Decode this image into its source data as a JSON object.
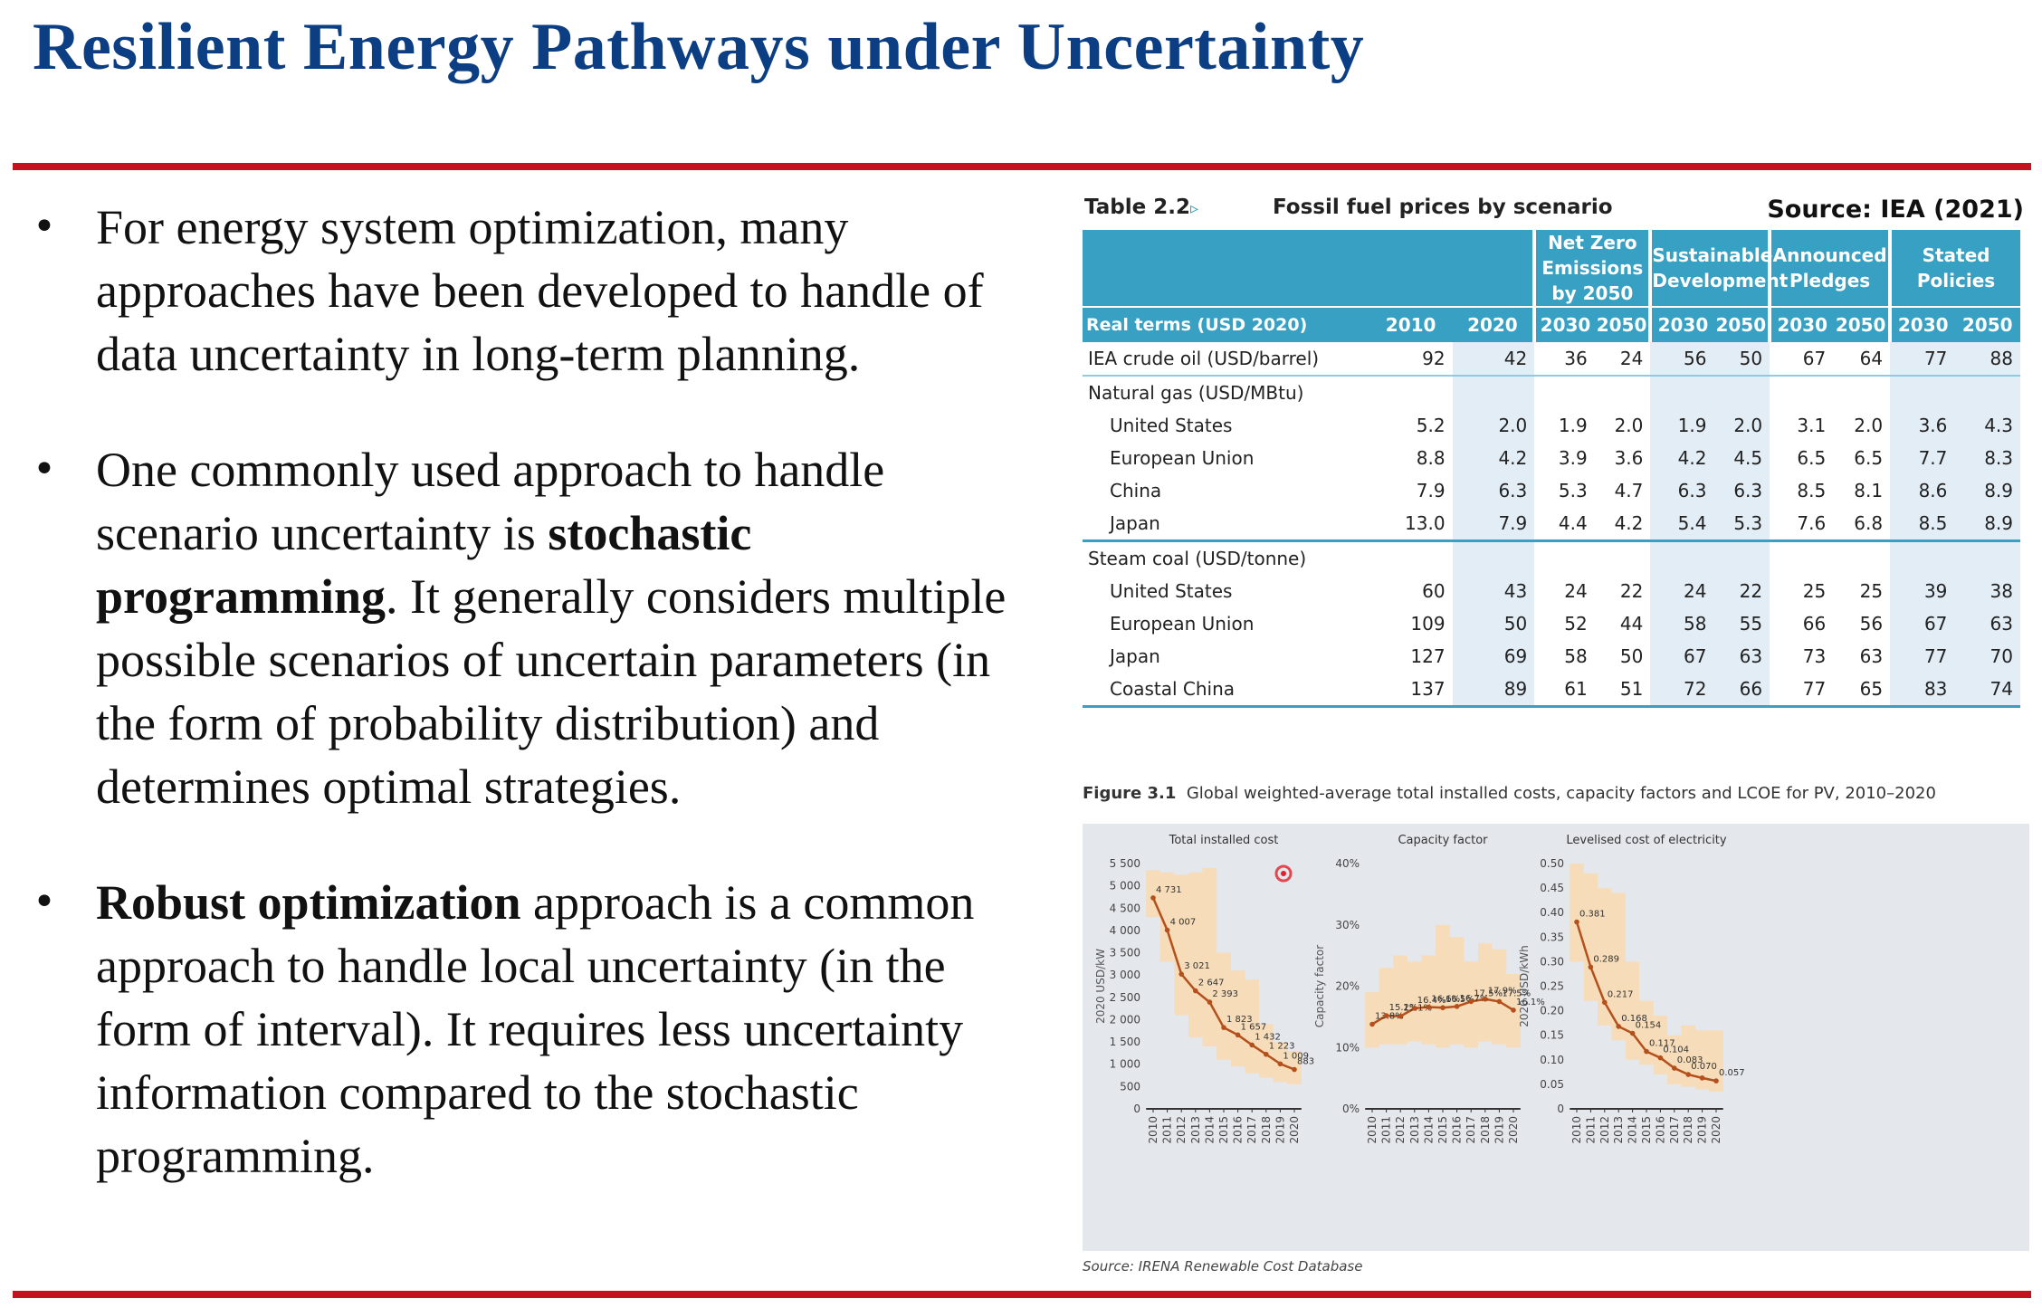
{
  "title": "Resilient Energy Pathways under Uncertainty",
  "bullets": [
    {
      "pre": "For energy system optimization, many approaches have been developed to handle of data uncertainty in long-term planning.",
      "bold": "",
      "post": ""
    },
    {
      "pre": "One commonly used approach to handle scenario uncertainty is ",
      "bold": "stochastic programming",
      "post": ". It generally considers multiple possible scenarios of uncertain parameters (in the form of probability distribution) and determines optimal strategies."
    },
    {
      "pre": "",
      "bold": "Robust optimization",
      "post": " approach is a common approach to handle local uncertainty (in the form of interval). It requires less uncertainty information compared to the stochastic programming."
    }
  ],
  "table": {
    "number": "Table 2.2",
    "marker": "▹",
    "caption": "Fossil fuel prices by scenario",
    "source": "Source: IEA (2021)",
    "groups": [
      "Net Zero Emissions by 2050",
      "Sustainable Development",
      "Announced Pledges",
      "Stated Policies"
    ],
    "header_label": "Real terms (USD 2020)",
    "years": [
      "2010",
      "2020",
      "2030",
      "2050",
      "2030",
      "2050",
      "2030",
      "2050",
      "2030",
      "2050"
    ],
    "rows": [
      {
        "label": "IEA crude oil (USD/barrel)",
        "kind": "first",
        "values": [
          "92",
          "42",
          "36",
          "24",
          "56",
          "50",
          "67",
          "64",
          "77",
          "88"
        ]
      },
      {
        "label": "Natural gas (USD/MBtu)",
        "kind": "section",
        "values": []
      },
      {
        "label": "United States",
        "kind": "sub",
        "values": [
          "5.2",
          "2.0",
          "1.9",
          "2.0",
          "1.9",
          "2.0",
          "3.1",
          "2.0",
          "3.6",
          "4.3"
        ]
      },
      {
        "label": "European Union",
        "kind": "sub",
        "values": [
          "8.8",
          "4.2",
          "3.9",
          "3.6",
          "4.2",
          "4.5",
          "6.5",
          "6.5",
          "7.7",
          "8.3"
        ]
      },
      {
        "label": "China",
        "kind": "sub",
        "values": [
          "7.9",
          "6.3",
          "5.3",
          "4.7",
          "6.3",
          "6.3",
          "8.5",
          "8.1",
          "8.6",
          "8.9"
        ]
      },
      {
        "label": "Japan",
        "kind": "sub",
        "values": [
          "13.0",
          "7.9",
          "4.4",
          "4.2",
          "5.4",
          "5.3",
          "7.6",
          "6.8",
          "8.5",
          "8.9"
        ]
      },
      {
        "label": "Steam coal (USD/tonne)",
        "kind": "section",
        "values": []
      },
      {
        "label": "United States",
        "kind": "sub",
        "values": [
          "60",
          "43",
          "24",
          "22",
          "24",
          "22",
          "25",
          "25",
          "39",
          "38"
        ]
      },
      {
        "label": "European Union",
        "kind": "sub",
        "values": [
          "109",
          "50",
          "52",
          "44",
          "58",
          "55",
          "66",
          "56",
          "67",
          "63"
        ]
      },
      {
        "label": "Japan",
        "kind": "sub",
        "values": [
          "127",
          "69",
          "58",
          "50",
          "67",
          "63",
          "73",
          "63",
          "77",
          "70"
        ]
      },
      {
        "label": "Coastal China",
        "kind": "sub",
        "values": [
          "137",
          "89",
          "61",
          "51",
          "72",
          "66",
          "77",
          "65",
          "83",
          "74"
        ]
      }
    ]
  },
  "figure": {
    "number": "Figure 3.1",
    "caption": "Global weighted-average total installed costs, capacity factors and LCOE for PV, 2010–2020",
    "source": "Source: IRENA Renewable Cost Database"
  },
  "colors": {
    "title": "#0b3e82",
    "rule": "#c4121e",
    "table_header": "#38a0c2",
    "band": "#f9d9b0",
    "line": "#b5501c",
    "cursor": "#e0202a"
  },
  "chart_data": [
    {
      "type": "line",
      "title": "Total installed cost",
      "ylabel": "2020 USD/kW",
      "ylim": [
        0,
        5500
      ],
      "yticks": [
        "0",
        "500",
        "1 000",
        "1 500",
        "2 000",
        "2 500",
        "3 000",
        "3 500",
        "4 000",
        "4 500",
        "5 000",
        "5 500"
      ],
      "x": [
        "2010",
        "2011",
        "2012",
        "2013",
        "2014",
        "2015",
        "2016",
        "2017",
        "2018",
        "2019",
        "2020"
      ],
      "values": [
        4731,
        4007,
        3021,
        2647,
        2393,
        1823,
        1657,
        1432,
        1223,
        1009,
        883
      ],
      "labels": [
        "4 731",
        "4 007",
        "3 021",
        "2 647",
        "2 393",
        "1 823",
        "1 657",
        "1 432",
        "1 223",
        "1 009",
        "883"
      ],
      "band_high": [
        5350,
        5300,
        5250,
        5300,
        5400,
        3500,
        3100,
        2900,
        1900,
        1500,
        1300
      ],
      "band_low": [
        4300,
        3300,
        2100,
        1600,
        1400,
        1100,
        950,
        800,
        700,
        600,
        550
      ]
    },
    {
      "type": "line",
      "title": "Capacity factor",
      "ylabel": "Capacity factor",
      "ylim": [
        0,
        40
      ],
      "yticks": [
        "0%",
        "10%",
        "20%",
        "30%",
        "40%"
      ],
      "x": [
        "2010",
        "2011",
        "2012",
        "2013",
        "2014",
        "2015",
        "2016",
        "2017",
        "2018",
        "2019",
        "2020"
      ],
      "values": [
        13.8,
        15.2,
        15.1,
        16.4,
        16.6,
        16.5,
        16.7,
        17.5,
        17.9,
        17.5,
        16.1
      ],
      "labels": [
        "13.8%",
        "15.2%",
        "15.1%",
        "16.4%",
        "16.6%",
        "16.5%",
        "16.7%",
        "17.5%",
        "17.9%",
        "17.5%",
        "16.1%"
      ],
      "band_high": [
        19,
        23,
        25,
        24,
        25,
        30,
        28,
        24,
        27,
        26,
        22
      ],
      "band_low": [
        10,
        10.5,
        10.5,
        11,
        10.5,
        10,
        10.5,
        10,
        11,
        10.5,
        10
      ]
    },
    {
      "type": "line",
      "title": "Levelised cost of electricity",
      "ylabel": "2020 USD/kWh",
      "ylim": [
        0,
        0.5
      ],
      "yticks": [
        "0",
        "0.05",
        "0.10",
        "0.15",
        "0.20",
        "0.25",
        "0.30",
        "0.35",
        "0.40",
        "0.45",
        "0.50"
      ],
      "x": [
        "2010",
        "2011",
        "2012",
        "2013",
        "2014",
        "2015",
        "2016",
        "2017",
        "2018",
        "2019",
        "2020"
      ],
      "values": [
        0.381,
        0.289,
        0.217,
        0.168,
        0.154,
        0.117,
        0.104,
        0.083,
        0.07,
        0.063,
        0.057
      ],
      "labels": [
        "0.381",
        "0.289",
        "0.217",
        "0.168",
        "0.154",
        "0.117",
        "0.104",
        "0.083",
        "0.070",
        "",
        "0.057"
      ],
      "band_high": [
        0.5,
        0.48,
        0.45,
        0.44,
        0.3,
        0.22,
        0.19,
        0.15,
        0.17,
        0.16,
        0.16
      ],
      "band_low": [
        0.3,
        0.22,
        0.17,
        0.14,
        0.1,
        0.09,
        0.07,
        0.05,
        0.045,
        0.04,
        0.035
      ]
    }
  ]
}
